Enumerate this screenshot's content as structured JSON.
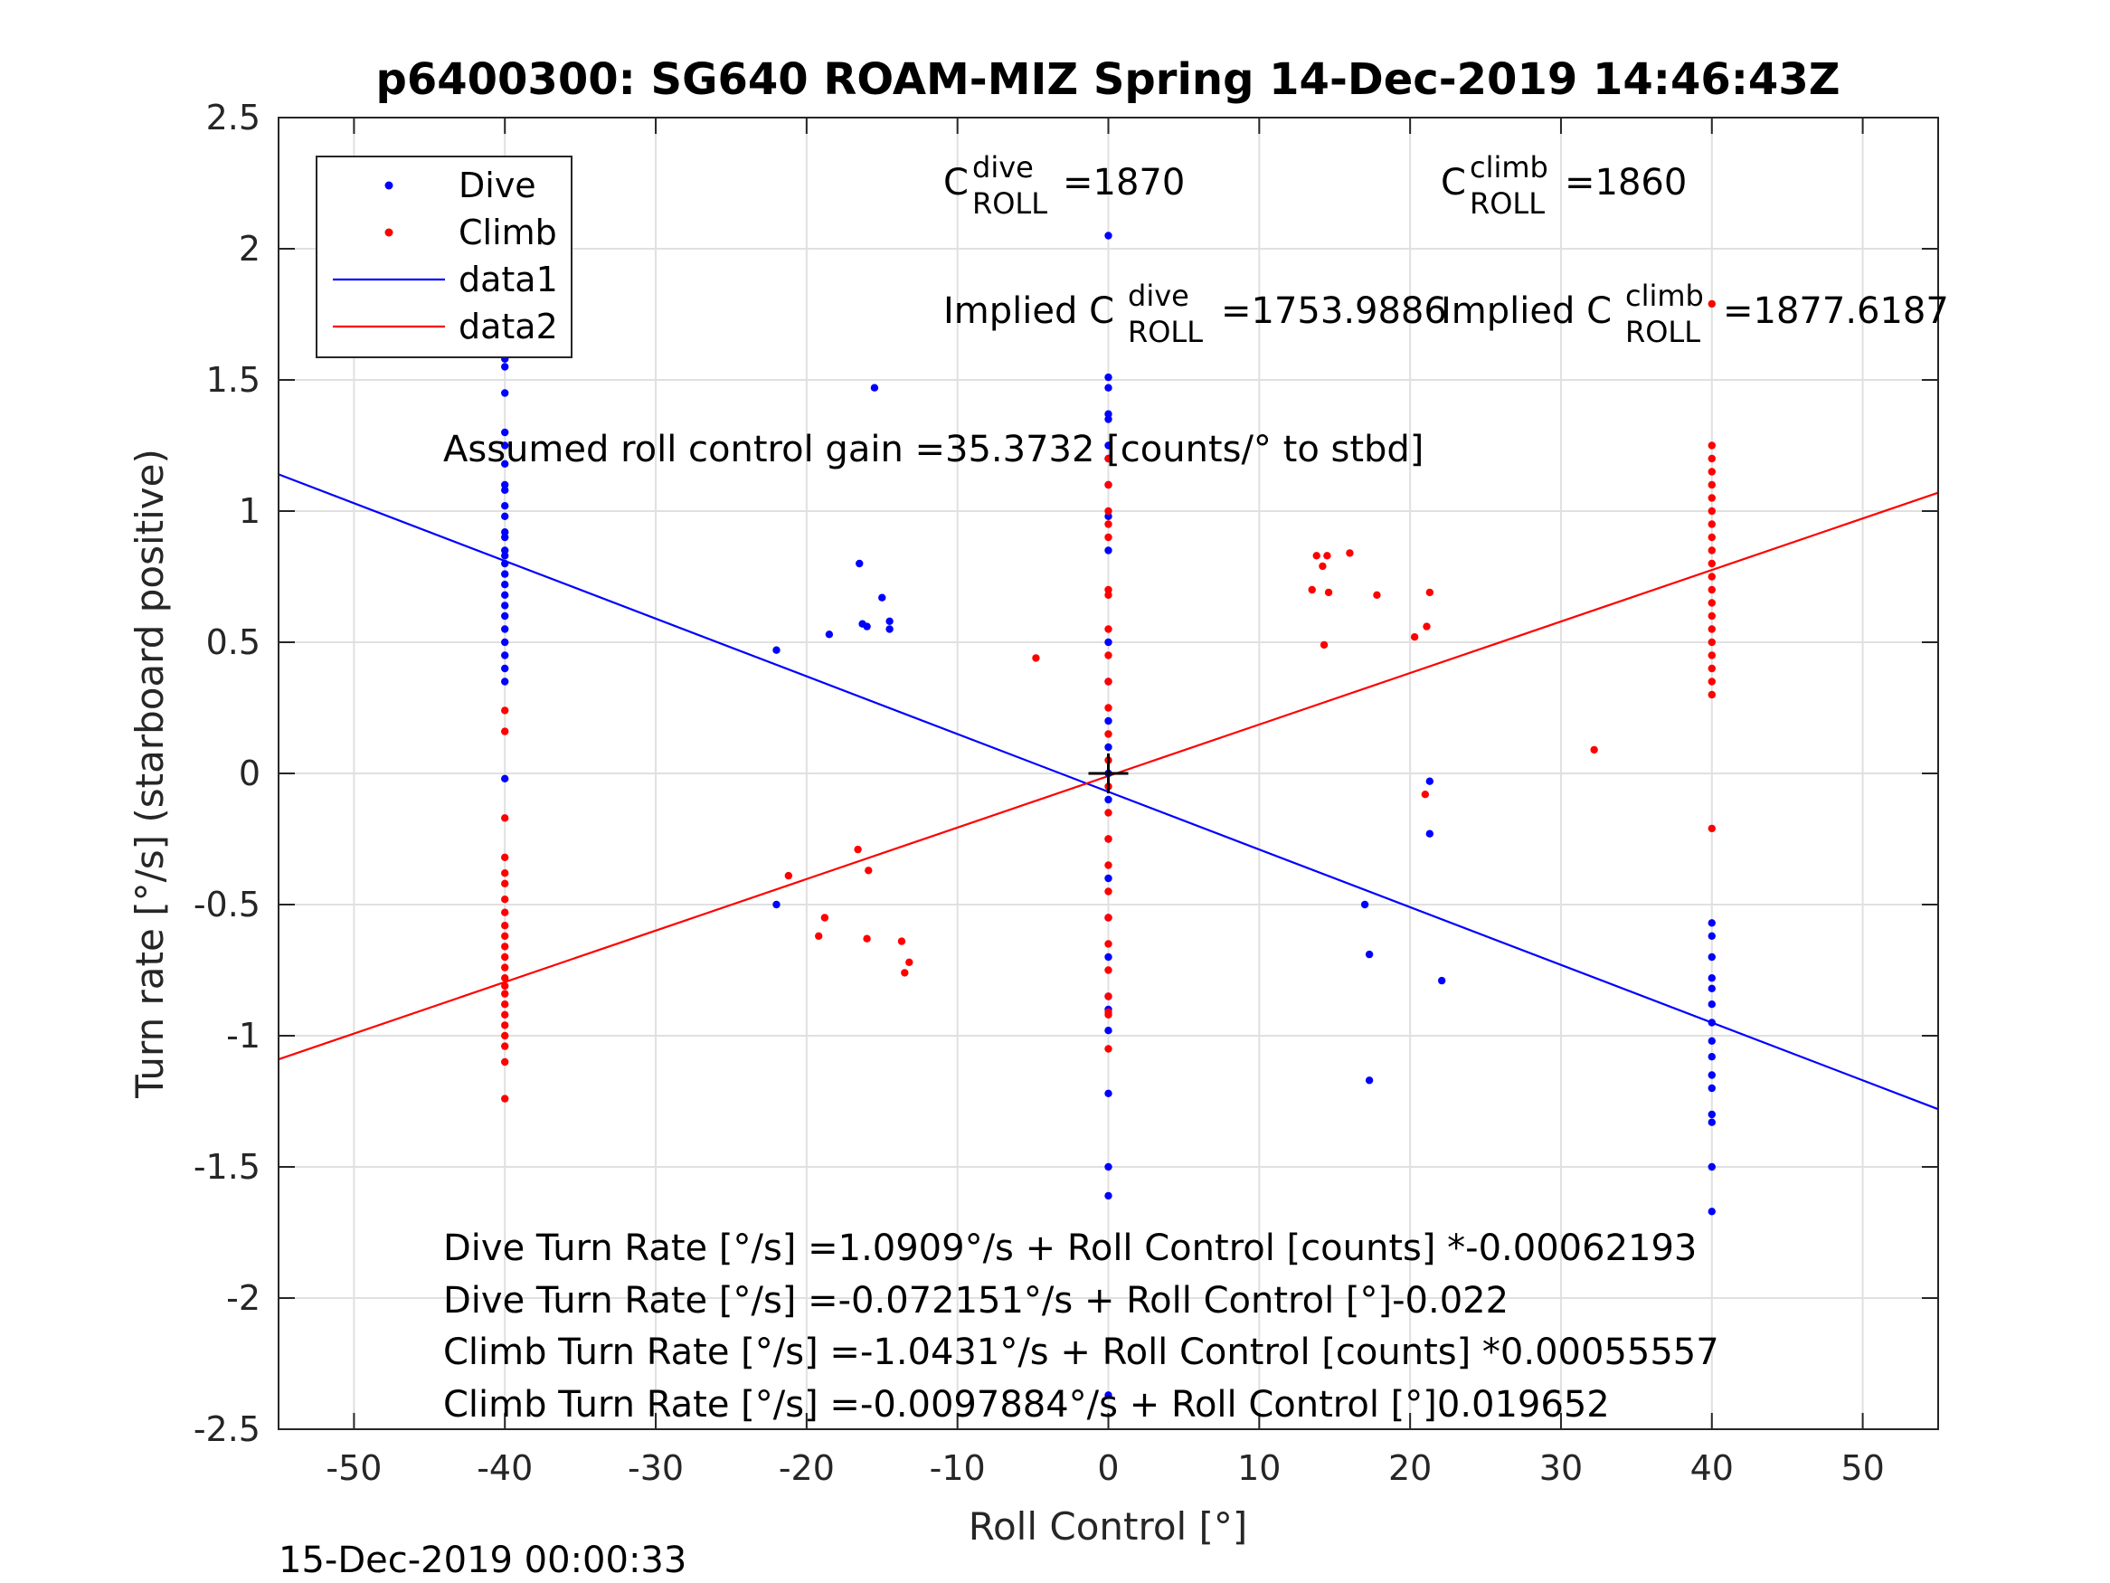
{
  "chart_data": {
    "type": "scatter",
    "title": "p6400300: SG640 ROAM-MIZ Spring 14-Dec-2019 14:46:43Z",
    "xlabel": "Roll Control [°]",
    "ylabel": "Turn rate [°/s] (starboard positive)",
    "xlim": [
      -55,
      55
    ],
    "ylim": [
      -2.5,
      2.5
    ],
    "xticks": [
      -50,
      -40,
      -30,
      -20,
      -10,
      0,
      10,
      20,
      30,
      40,
      50
    ],
    "yticks": [
      2.5,
      2,
      1.5,
      1,
      0.5,
      0,
      -0.5,
      -1,
      -1.5,
      -2,
      -2.5
    ],
    "xtick_labels": [
      "-50",
      "-40",
      "-30",
      "-20",
      "-10",
      "0",
      "10",
      "20",
      "30",
      "40",
      "50"
    ],
    "ytick_labels": [
      "2.5",
      "2",
      "1.5",
      "1",
      "0.5",
      "0",
      "-0.5",
      "-1",
      "-1.5",
      "-2",
      "-2.5"
    ],
    "grid": true,
    "legend": {
      "placement": "top-left",
      "entries": [
        {
          "label": "Dive",
          "color": "#0000ff",
          "kind": "marker"
        },
        {
          "label": "Climb",
          "color": "#ff0000",
          "kind": "marker"
        },
        {
          "label": "data1",
          "color": "#0000ff",
          "kind": "line"
        },
        {
          "label": "data2",
          "color": "#ff0000",
          "kind": "line"
        }
      ]
    },
    "series": [
      {
        "name": "Dive",
        "color": "#0000ff",
        "points": [
          [
            -40,
            1.8
          ],
          [
            -40,
            1.58
          ],
          [
            -40,
            1.55
          ],
          [
            -40,
            1.45
          ],
          [
            -40,
            1.3
          ],
          [
            -40,
            1.25
          ],
          [
            -40,
            1.18
          ],
          [
            -40,
            1.1
          ],
          [
            -40,
            1.08
          ],
          [
            -40,
            1.02
          ],
          [
            -40,
            0.98
          ],
          [
            -40,
            0.92
          ],
          [
            -40,
            0.9
          ],
          [
            -40,
            0.85
          ],
          [
            -40,
            0.83
          ],
          [
            -40,
            0.8
          ],
          [
            -40,
            0.76
          ],
          [
            -40,
            0.72
          ],
          [
            -40,
            0.68
          ],
          [
            -40,
            0.64
          ],
          [
            -40,
            0.6
          ],
          [
            -40,
            0.55
          ],
          [
            -40,
            0.5
          ],
          [
            -40,
            0.45
          ],
          [
            -40,
            0.4
          ],
          [
            -40,
            0.35
          ],
          [
            -40,
            -0.02
          ],
          [
            -22,
            0.47
          ],
          [
            -22,
            -0.5
          ],
          [
            -18.5,
            0.53
          ],
          [
            -16.5,
            0.8
          ],
          [
            -16.3,
            0.57
          ],
          [
            -16,
            0.56
          ],
          [
            -15.5,
            1.47
          ],
          [
            -15,
            0.67
          ],
          [
            -14.5,
            0.58
          ],
          [
            -14.5,
            0.55
          ],
          [
            0,
            2.05
          ],
          [
            0,
            1.51
          ],
          [
            0,
            1.47
          ],
          [
            0,
            1.37
          ],
          [
            0,
            1.35
          ],
          [
            0,
            1.25
          ],
          [
            0,
            1.2
          ],
          [
            0,
            1.1
          ],
          [
            0,
            0.98
          ],
          [
            0,
            0.85
          ],
          [
            0,
            0.5
          ],
          [
            0,
            0.35
          ],
          [
            0,
            0.2
          ],
          [
            0,
            0.1
          ],
          [
            0,
            0.0
          ],
          [
            0,
            -0.1
          ],
          [
            0,
            -0.25
          ],
          [
            0,
            -0.4
          ],
          [
            0,
            -0.55
          ],
          [
            0,
            -0.7
          ],
          [
            0,
            -0.85
          ],
          [
            0,
            -0.9
          ],
          [
            0,
            -0.98
          ],
          [
            0,
            -1.22
          ],
          [
            0,
            -1.5
          ],
          [
            0,
            -1.61
          ],
          [
            0,
            -2.37
          ],
          [
            17,
            -0.5
          ],
          [
            17.3,
            -0.69
          ],
          [
            17.3,
            -1.17
          ],
          [
            21.3,
            -0.03
          ],
          [
            21.3,
            -0.23
          ],
          [
            22.1,
            -0.79
          ],
          [
            40,
            -0.57
          ],
          [
            40,
            -0.62
          ],
          [
            40,
            -0.7
          ],
          [
            40,
            -0.78
          ],
          [
            40,
            -0.82
          ],
          [
            40,
            -0.88
          ],
          [
            40,
            -0.95
          ],
          [
            40,
            -1.02
          ],
          [
            40,
            -1.08
          ],
          [
            40,
            -1.15
          ],
          [
            40,
            -1.2
          ],
          [
            40,
            -1.3
          ],
          [
            40,
            -1.33
          ],
          [
            40,
            -1.5
          ],
          [
            40,
            -1.67
          ]
        ]
      },
      {
        "name": "Climb",
        "color": "#ff0000",
        "points": [
          [
            -40,
            0.24
          ],
          [
            -40,
            0.16
          ],
          [
            -40,
            -0.17
          ],
          [
            -40,
            -0.32
          ],
          [
            -40,
            -0.38
          ],
          [
            -40,
            -0.42
          ],
          [
            -40,
            -0.48
          ],
          [
            -40,
            -0.53
          ],
          [
            -40,
            -0.58
          ],
          [
            -40,
            -0.62
          ],
          [
            -40,
            -0.66
          ],
          [
            -40,
            -0.7
          ],
          [
            -40,
            -0.74
          ],
          [
            -40,
            -0.78
          ],
          [
            -40,
            -0.81
          ],
          [
            -40,
            -0.84
          ],
          [
            -40,
            -0.88
          ],
          [
            -40,
            -0.92
          ],
          [
            -40,
            -0.96
          ],
          [
            -40,
            -1.0
          ],
          [
            -40,
            -1.04
          ],
          [
            -40,
            -1.1
          ],
          [
            -40,
            -1.24
          ],
          [
            -21.2,
            -0.39
          ],
          [
            -19.2,
            -0.62
          ],
          [
            -18.8,
            -0.55
          ],
          [
            -16.6,
            -0.29
          ],
          [
            -16,
            -0.63
          ],
          [
            -15.9,
            -0.37
          ],
          [
            -13.7,
            -0.64
          ],
          [
            -13.5,
            -0.76
          ],
          [
            -13.2,
            -0.72
          ],
          [
            -4.8,
            0.44
          ],
          [
            0,
            1.2
          ],
          [
            0,
            1.1
          ],
          [
            0,
            1.0
          ],
          [
            0,
            0.95
          ],
          [
            0,
            0.9
          ],
          [
            0,
            0.7
          ],
          [
            0,
            0.68
          ],
          [
            0,
            0.55
          ],
          [
            0,
            0.45
          ],
          [
            0,
            0.35
          ],
          [
            0,
            0.25
          ],
          [
            0,
            0.15
          ],
          [
            0,
            0.05
          ],
          [
            0,
            -0.05
          ],
          [
            0,
            -0.15
          ],
          [
            0,
            -0.25
          ],
          [
            0,
            -0.35
          ],
          [
            0,
            -0.45
          ],
          [
            0,
            -0.55
          ],
          [
            0,
            -0.65
          ],
          [
            0,
            -0.75
          ],
          [
            0,
            -0.85
          ],
          [
            0,
            -0.91
          ],
          [
            0,
            -0.92
          ],
          [
            0,
            -1.05
          ],
          [
            13.5,
            0.7
          ],
          [
            13.8,
            0.83
          ],
          [
            14.2,
            0.79
          ],
          [
            14.3,
            0.49
          ],
          [
            14.5,
            0.83
          ],
          [
            14.6,
            0.69
          ],
          [
            16,
            0.84
          ],
          [
            17.8,
            0.68
          ],
          [
            20.3,
            0.52
          ],
          [
            21,
            -0.08
          ],
          [
            21.1,
            0.56
          ],
          [
            21.3,
            0.69
          ],
          [
            32.2,
            0.09
          ],
          [
            40,
            1.79
          ],
          [
            40,
            1.25
          ],
          [
            40,
            1.2
          ],
          [
            40,
            1.15
          ],
          [
            40,
            1.1
          ],
          [
            40,
            1.05
          ],
          [
            40,
            1.0
          ],
          [
            40,
            0.95
          ],
          [
            40,
            0.9
          ],
          [
            40,
            0.85
          ],
          [
            40,
            0.8
          ],
          [
            40,
            0.75
          ],
          [
            40,
            0.7
          ],
          [
            40,
            0.65
          ],
          [
            40,
            0.6
          ],
          [
            40,
            0.55
          ],
          [
            40,
            0.5
          ],
          [
            40,
            0.45
          ],
          [
            40,
            0.4
          ],
          [
            40,
            0.35
          ],
          [
            40,
            0.3
          ],
          [
            40,
            -0.21
          ]
        ]
      },
      {
        "name": "data1",
        "kind": "line",
        "color": "#0000ff",
        "x": [
          -55,
          55
        ],
        "y": [
          1.14,
          -1.28
        ]
      },
      {
        "name": "data2",
        "kind": "line",
        "color": "#ff0000",
        "x": [
          -55,
          55
        ],
        "y": [
          -1.09,
          1.07
        ]
      }
    ],
    "center_marker": {
      "x": 0,
      "y": 0,
      "symbol": "+",
      "color": "#000000"
    },
    "annotations": {
      "c_dive": {
        "base": "C",
        "sup": "dive",
        "sub": "ROLL",
        "value": "=1870"
      },
      "c_climb": {
        "base": "C",
        "sup": "climb",
        "sub": "ROLL",
        "value": "=1860"
      },
      "implied_dive": {
        "prefix": "Implied C",
        "sup": "dive",
        "sub": "ROLL",
        "value": "=1753.9886"
      },
      "implied_climb": {
        "prefix": "Implied C",
        "sup": "climb",
        "sub": "ROLL",
        "value": "=1877.6187"
      },
      "gain": "Assumed roll control gain =35.3732 [counts/° to stbd]",
      "fit_lines": [
        "Dive Turn Rate [°/s] =1.0909°/s + Roll Control [counts] *-0.00062193",
        "Dive Turn Rate [°/s] =-0.072151°/s + Roll Control [°]-0.022",
        "Climb Turn Rate [°/s] =-1.0431°/s + Roll Control [counts] *0.00055557",
        "Climb Turn Rate [°/s] =-0.0097884°/s + Roll Control [°]0.019652"
      ]
    },
    "timestamp": "15-Dec-2019 00:00:33"
  }
}
